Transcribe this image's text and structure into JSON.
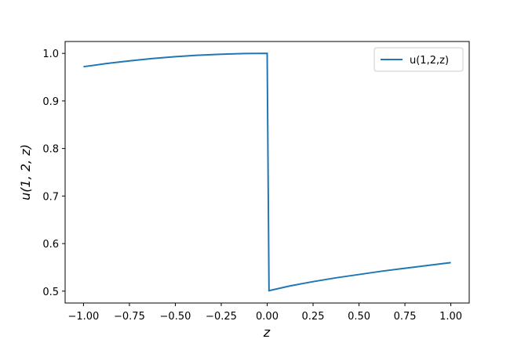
{
  "chart_data": {
    "type": "line",
    "xlabel": "z",
    "ylabel": "u(1, 2, z)",
    "x": [
      -1,
      -0.875,
      -0.75,
      -0.625,
      -0.5,
      -0.375,
      -0.25,
      -0.125,
      0,
      0.01,
      0.125,
      0.25,
      0.375,
      0.5,
      0.625,
      0.75,
      0.875,
      1
    ],
    "series": [
      {
        "name": "u(1,2,z)",
        "color": "#1f77b4",
        "values": [
          0.972,
          0.9786,
          0.9843,
          0.9891,
          0.993,
          0.9961,
          0.9983,
          0.9996,
          1.0,
          0.501,
          0.511,
          0.52,
          0.528,
          0.535,
          0.542,
          0.548,
          0.554,
          0.56
        ]
      }
    ],
    "xlim": [
      -1.1,
      1.1
    ],
    "ylim": [
      0.475,
      1.025
    ],
    "xticks": [
      {
        "value": -1,
        "label": "−1.00"
      },
      {
        "value": -0.75,
        "label": "−0.75"
      },
      {
        "value": -0.5,
        "label": "−0.50"
      },
      {
        "value": -0.25,
        "label": "−0.25"
      },
      {
        "value": 0,
        "label": "0.00"
      },
      {
        "value": 0.25,
        "label": "0.25"
      },
      {
        "value": 0.5,
        "label": "0.50"
      },
      {
        "value": 0.75,
        "label": "0.75"
      },
      {
        "value": 1,
        "label": "1.00"
      }
    ],
    "yticks": [
      0.5,
      0.6,
      0.7,
      0.8,
      0.9,
      {
        "value": 1,
        "label": "1.0"
      }
    ],
    "legend": "upper right",
    "grid": false
  }
}
